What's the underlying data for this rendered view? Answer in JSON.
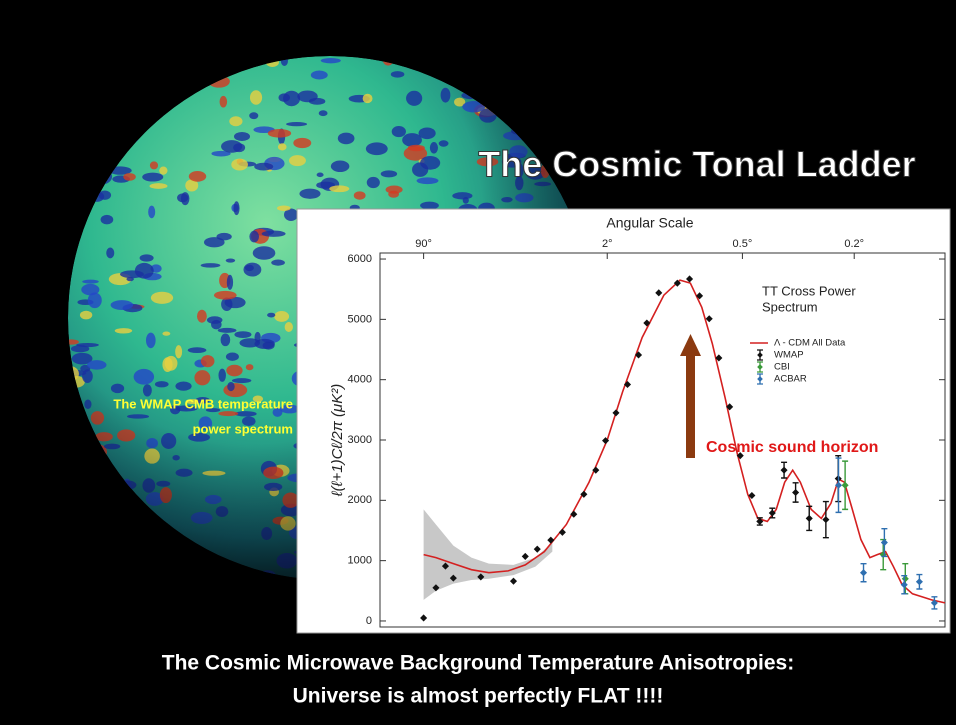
{
  "slide": {
    "title": "The Cosmic Tonal Ladder",
    "side_caption": [
      "The WMAP CMB temperature",
      "power  spectrum"
    ],
    "annotation": "Cosmic sound horizon",
    "footer": [
      "The Cosmic Microwave Background Temperature Anisotropies:",
      "Universe is almost perfectly FLAT !!!!"
    ]
  },
  "chart_data": {
    "type": "line",
    "x_top_label": "Angular Scale",
    "ylabel": "ℓ(ℓ+1)Cℓ/2π (μK²)",
    "legend_title": [
      "TT Cross Power",
      "Spectrum"
    ],
    "xlim": [
      0.3,
      1850
    ],
    "xticks": [
      {
        "value": 2,
        "label": "90°"
      },
      {
        "value": 90,
        "label": "2°"
      },
      {
        "value": 400,
        "label": "0.5°"
      },
      {
        "value": 1000,
        "label": "0.2°"
      }
    ],
    "ylim": [
      -100,
      6100
    ],
    "yticks": [
      0,
      1000,
      2000,
      3000,
      4000,
      5000,
      6000
    ],
    "band": {
      "color": "#c8c8c8",
      "x": [
        2,
        3,
        5,
        8,
        12,
        20,
        30,
        40
      ],
      "low": [
        350,
        500,
        620,
        680,
        700,
        760,
        900,
        1150
      ],
      "high": [
        1850,
        1600,
        1250,
        1050,
        950,
        930,
        1050,
        1300
      ]
    },
    "series": [
      {
        "name": "Λ - CDM All Data",
        "style": "line",
        "color": "#d42020",
        "x": [
          2,
          3,
          5,
          8,
          12,
          18,
          25,
          35,
          50,
          70,
          90,
          110,
          140,
          180,
          215,
          240,
          270,
          300,
          340,
          380,
          420,
          460,
          500,
          540,
          580,
          620,
          660,
          720,
          780,
          840,
          890,
          930,
          980,
          1050,
          1120,
          1180,
          1250,
          1320,
          1400,
          1500,
          1600,
          1700,
          1850
        ],
        "values": [
          1100,
          1050,
          950,
          850,
          800,
          830,
          930,
          1150,
          1600,
          2300,
          3000,
          3800,
          4700,
          5400,
          5650,
          5600,
          5200,
          4600,
          3700,
          2800,
          2100,
          1700,
          1650,
          1850,
          2300,
          2500,
          2300,
          1850,
          1700,
          1950,
          2350,
          2300,
          1900,
          1350,
          1050,
          1100,
          1150,
          900,
          600,
          450,
          400,
          350,
          300
        ]
      },
      {
        "name": "WMAP",
        "style": "points",
        "color": "#111111",
        "x": [
          2,
          3,
          4,
          5,
          10,
          20,
          25,
          31,
          39,
          47,
          56,
          65,
          77,
          88,
          101,
          117,
          134,
          148,
          170,
          209,
          238,
          264,
          291,
          320,
          355,
          392,
          436,
          468,
          522,
          577,
          635,
          709,
          808,
          888
        ],
        "values": [
          50,
          550,
          910,
          710,
          730,
          660,
          1070,
          1190,
          1340,
          1470,
          1770,
          2100,
          2500,
          2990,
          3450,
          3920,
          4410,
          4940,
          5440,
          5600,
          5670,
          5390,
          5010,
          4360,
          3550,
          2740,
          2080,
          1650,
          1790,
          2500,
          2130,
          1700,
          1680,
          2360
        ],
        "errors": [
          null,
          null,
          null,
          null,
          null,
          null,
          null,
          null,
          null,
          null,
          null,
          null,
          null,
          null,
          null,
          null,
          null,
          null,
          null,
          null,
          null,
          null,
          null,
          null,
          null,
          null,
          null,
          60,
          80,
          130,
          160,
          200,
          300,
          380
        ]
      },
      {
        "name": "CBI",
        "style": "points",
        "color": "#3a9a3a",
        "x": [
          935,
          1230,
          1430
        ],
        "values": [
          2250,
          1100,
          700
        ],
        "errors": [
          400,
          250,
          250
        ]
      },
      {
        "name": "ACBAR",
        "style": "points",
        "color": "#2e6fb0",
        "x": [
          890,
          1070,
          1240,
          1420,
          1570,
          1730
        ],
        "values": [
          2250,
          800,
          1300,
          600,
          650,
          300
        ],
        "errors": [
          450,
          150,
          230,
          150,
          120,
          100
        ]
      }
    ]
  }
}
